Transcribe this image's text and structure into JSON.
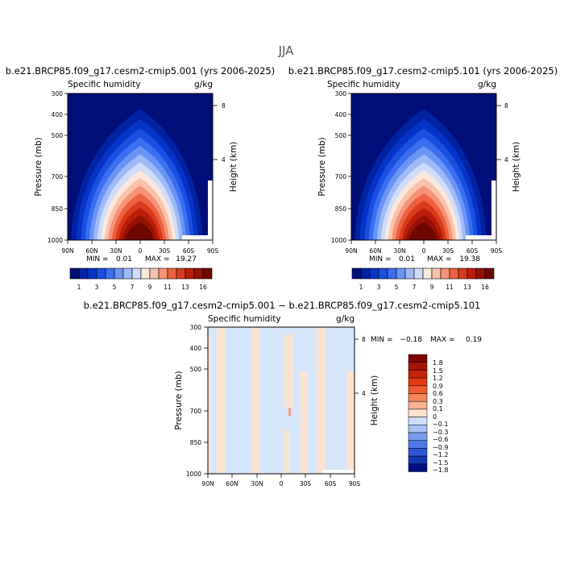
{
  "figure": {
    "title": "JJA"
  },
  "chart_data": [
    {
      "type": "heatmap",
      "title": "b.e21.BRCP85.f09_g17.cesm2-cmip5.001 (yrs 2006-2025)",
      "subtitle_left": "Specific humidity",
      "subtitle_right": "g/kg",
      "ylabel": "Pressure (mb)",
      "ylabel_right": "Height (km)",
      "x_ticks": [
        "90N",
        "60N",
        "30N",
        "0",
        "30S",
        "60S",
        "90S"
      ],
      "y_ticks": [
        "300",
        "400",
        "500",
        "700",
        "850",
        "1000"
      ],
      "y_ticks_right": [
        "8",
        "4"
      ],
      "ylim": [
        1000,
        300
      ],
      "xlim": [
        90,
        -90
      ],
      "min_label": "MIN =",
      "min_value": "0.01",
      "max_label": "MAX =",
      "max_value": "19.27",
      "colorbar_labels": [
        "1",
        "3",
        "5",
        "7",
        "9",
        "11",
        "13",
        "16"
      ]
    },
    {
      "type": "heatmap",
      "title": "b.e21.BRCP85.f09_g17.cesm2-cmip5.101 (yrs 2006-2025)",
      "subtitle_left": "Specific humidity",
      "subtitle_right": "g/kg",
      "ylabel": "Pressure (mb)",
      "ylabel_right": "Height (km)",
      "x_ticks": [
        "90N",
        "60N",
        "30N",
        "0",
        "30S",
        "60S",
        "90S"
      ],
      "y_ticks": [
        "300",
        "400",
        "500",
        "700",
        "850",
        "1000"
      ],
      "y_ticks_right": [
        "8",
        "4"
      ],
      "ylim": [
        1000,
        300
      ],
      "xlim": [
        90,
        -90
      ],
      "min_label": "MIN =",
      "min_value": "0.01",
      "max_label": "MAX =",
      "max_value": "19.38",
      "colorbar_labels": [
        "1",
        "3",
        "5",
        "7",
        "9",
        "11",
        "13",
        "16"
      ]
    },
    {
      "type": "heatmap",
      "title": "b.e21.BRCP85.f09_g17.cesm2-cmip5.001 − b.e21.BRCP85.f09_g17.cesm2-cmip5.101",
      "subtitle_left": "Specific humidity",
      "subtitle_right": "g/kg",
      "ylabel": "Pressure (mb)",
      "ylabel_right": "Height (km)",
      "x_ticks": [
        "90N",
        "60N",
        "30N",
        "0",
        "30S",
        "60S",
        "90S"
      ],
      "y_ticks": [
        "300",
        "400",
        "500",
        "700",
        "850",
        "1000"
      ],
      "y_ticks_right": [
        "8",
        "4"
      ],
      "ylim": [
        1000,
        300
      ],
      "xlim": [
        90,
        -90
      ],
      "min_label": "MIN =",
      "min_value": "−0.18",
      "max_label": "MAX =",
      "max_value": "0.19",
      "colorbar_labels": [
        "1.8",
        "1.5",
        "1.2",
        "0.9",
        "0.6",
        "0.3",
        "0.1",
        "0",
        "−0.1",
        "−0.3",
        "−0.6",
        "−0.9",
        "−1.2",
        "−1.5",
        "−1.8"
      ]
    }
  ],
  "colors": {
    "humidity_scale": [
      "#000e7a",
      "#0023a3",
      "#0634c8",
      "#1a4fe0",
      "#3b6ef0",
      "#6a95f5",
      "#9fbaf6",
      "#cfdcfa",
      "#fbe8dc",
      "#f9c2ad",
      "#f59377",
      "#ec6140",
      "#d83a1c",
      "#bb1d0a",
      "#961004",
      "#6e0700"
    ],
    "diff_scale": [
      "#7e0500",
      "#a51203",
      "#c7230a",
      "#e03a15",
      "#f15a2e",
      "#f7865c",
      "#f9b394",
      "#fde2cf",
      "#cfe0fb",
      "#a8c3f6",
      "#7a9ff0",
      "#4f7ae6",
      "#2d55d4",
      "#1534b0",
      "#030f80"
    ],
    "diff_fill_blue": "#d6e6fb",
    "diff_fill_orange": "#fde4d2"
  }
}
